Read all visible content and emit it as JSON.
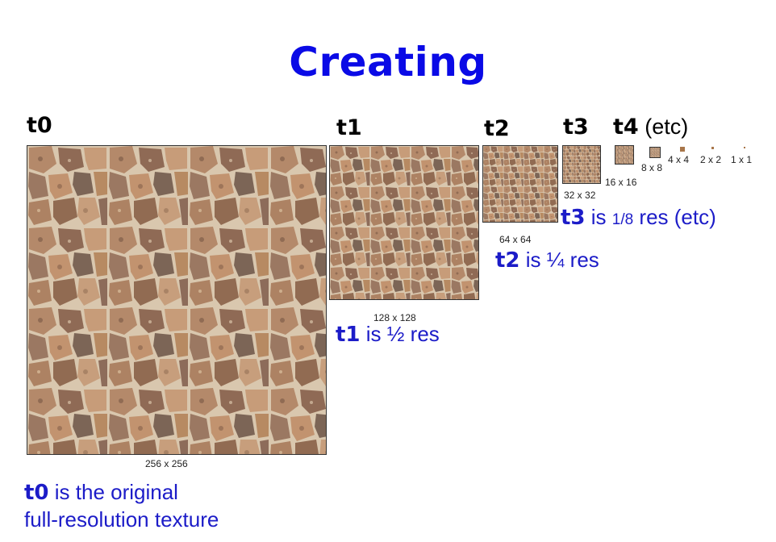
{
  "title": "Creating",
  "levels": {
    "t0": {
      "label": "t0",
      "size": "256 x 256"
    },
    "t1": {
      "label": "t1",
      "size": "128 x 128"
    },
    "t2": {
      "label": "t2",
      "size": "64 x 64"
    },
    "t3": {
      "label": "t3",
      "size": "32 x 32"
    },
    "t4": {
      "label": "t4",
      "suffix": " (etc)",
      "size": "16 x 16"
    },
    "t5": {
      "size": "8 x 8"
    },
    "t6": {
      "size": "4 x 4"
    },
    "t7": {
      "size": "2 x 2"
    },
    "t8": {
      "size": "1 x 1"
    }
  },
  "captions": {
    "t0": {
      "bold": "t0",
      "line1": " is the original",
      "line2": "full-resolution texture"
    },
    "t1": {
      "bold": "t1",
      "text": " is ½ res"
    },
    "t2": {
      "bold": "t2",
      "text": " is ¼ res"
    },
    "t3": {
      "bold": "t3",
      "text_pre": " is ",
      "fraction": "1/8",
      "text_post": " res (etc)"
    }
  },
  "colors": {
    "title": "#0a0ae6",
    "caption": "#1c1cc8",
    "stone_base": "#8a6a4f"
  }
}
